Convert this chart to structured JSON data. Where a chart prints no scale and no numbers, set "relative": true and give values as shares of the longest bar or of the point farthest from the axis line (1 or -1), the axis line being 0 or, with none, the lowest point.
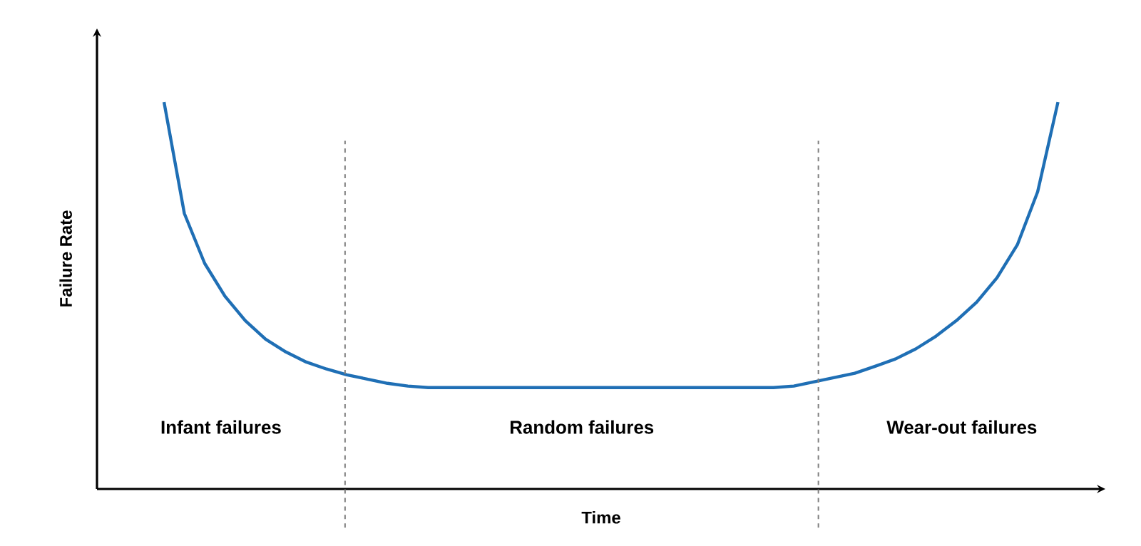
{
  "chart_data": {
    "type": "line",
    "relative": true,
    "xlabel": "Time",
    "ylabel": "Failure Rate",
    "categories": [
      null,
      null,
      null,
      null,
      null,
      null,
      null,
      null,
      null,
      null,
      null,
      null,
      null,
      null,
      null,
      null,
      null,
      null,
      null,
      null,
      null,
      null,
      null,
      null,
      null,
      null,
      null,
      null,
      null,
      null,
      null,
      null,
      null,
      null,
      null,
      null,
      null,
      null,
      null,
      null,
      null,
      null,
      null,
      null,
      null
    ],
    "values": [
      1.0,
      0.712,
      0.583,
      0.498,
      0.435,
      0.387,
      0.354,
      0.328,
      0.31,
      0.295,
      0.284,
      0.273,
      0.266,
      0.262,
      0.262,
      0.262,
      0.262,
      0.262,
      0.262,
      0.262,
      0.262,
      0.262,
      0.262,
      0.262,
      0.262,
      0.262,
      0.262,
      0.262,
      0.262,
      0.262,
      0.262,
      0.266,
      0.277,
      0.288,
      0.299,
      0.317,
      0.336,
      0.362,
      0.395,
      0.435,
      0.483,
      0.546,
      0.631,
      0.768,
      1.0
    ],
    "color": "#1f6fb5",
    "marker": "none",
    "line_style": "solid",
    "annotations": [
      "Infant failures",
      "Random failures",
      "Wear-out failures"
    ]
  }
}
